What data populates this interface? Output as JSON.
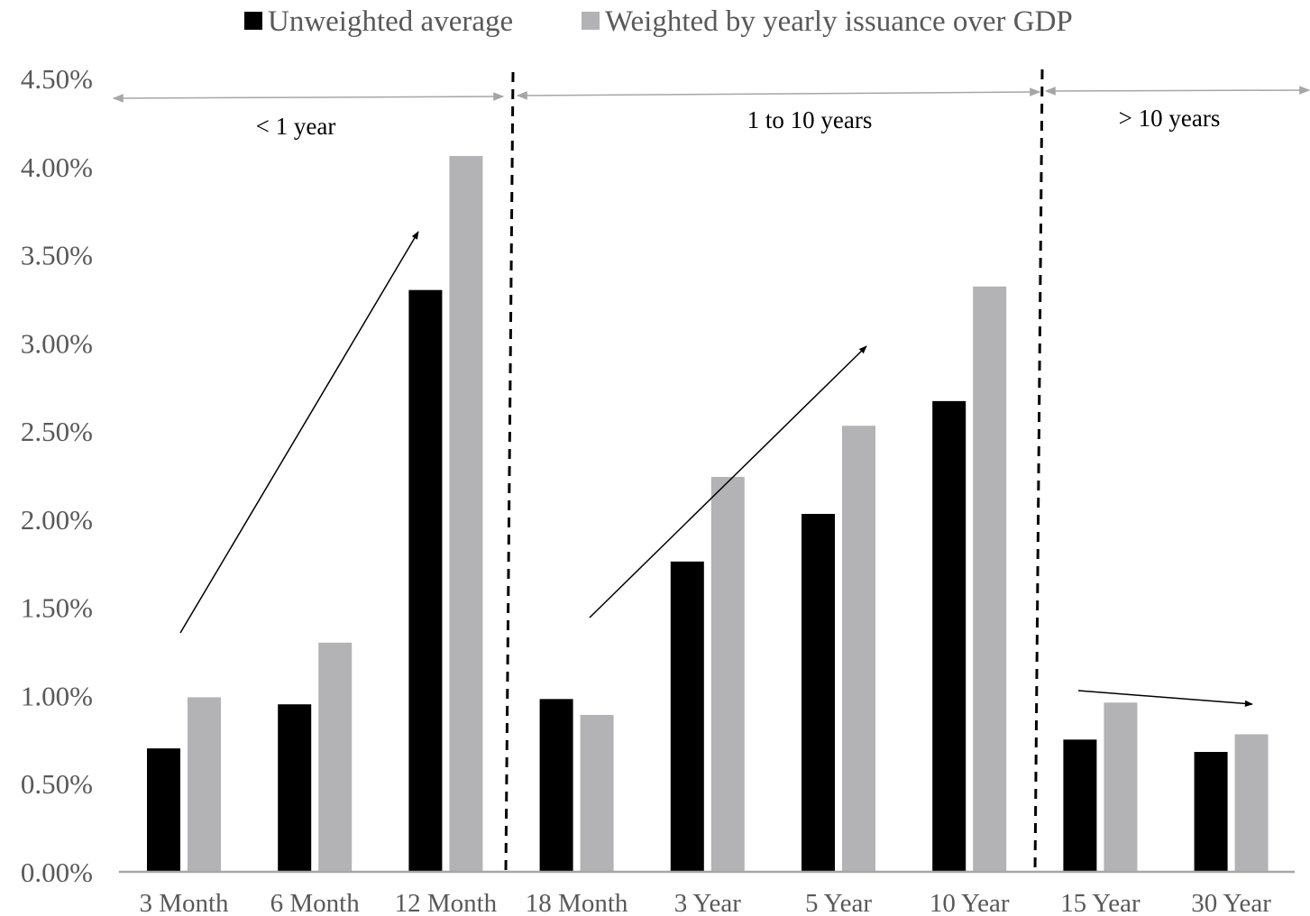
{
  "chart_data": {
    "type": "bar",
    "categories": [
      "3 Month",
      "6 Month",
      "12 Month",
      "18 Month",
      "3 Year",
      "5 Year",
      "10 Year",
      "15 Year",
      "30 Year"
    ],
    "series": [
      {
        "name": "Unweighted average",
        "color": "#000000",
        "values": [
          0.007,
          0.0095,
          0.033,
          0.0098,
          0.0176,
          0.0203,
          0.0267,
          0.0075,
          0.0068
        ]
      },
      {
        "name": "Weighted by yearly issuance over GDP",
        "color": "#b3b3b5",
        "values": [
          0.0099,
          0.013,
          0.0406,
          0.0089,
          0.0224,
          0.0253,
          0.0332,
          0.0096,
          0.0078
        ]
      }
    ],
    "ylim": [
      0,
      0.045
    ],
    "yticks": [
      "0.00%",
      "0.50%",
      "1.00%",
      "1.50%",
      "2.00%",
      "2.50%",
      "3.00%",
      "3.50%",
      "4.00%",
      "4.50%"
    ],
    "title": "",
    "xlabel": "",
    "ylabel": "",
    "grid": false,
    "legend_position": "top-center",
    "groups": [
      {
        "label": "< 1 year",
        "from": "3 Month",
        "to": "12 Month"
      },
      {
        "label": "1 to 10 years",
        "from": "18 Month",
        "to": "10 Year"
      },
      {
        "label": "> 10 years",
        "from": "15 Year",
        "to": "30 Year"
      }
    ]
  }
}
